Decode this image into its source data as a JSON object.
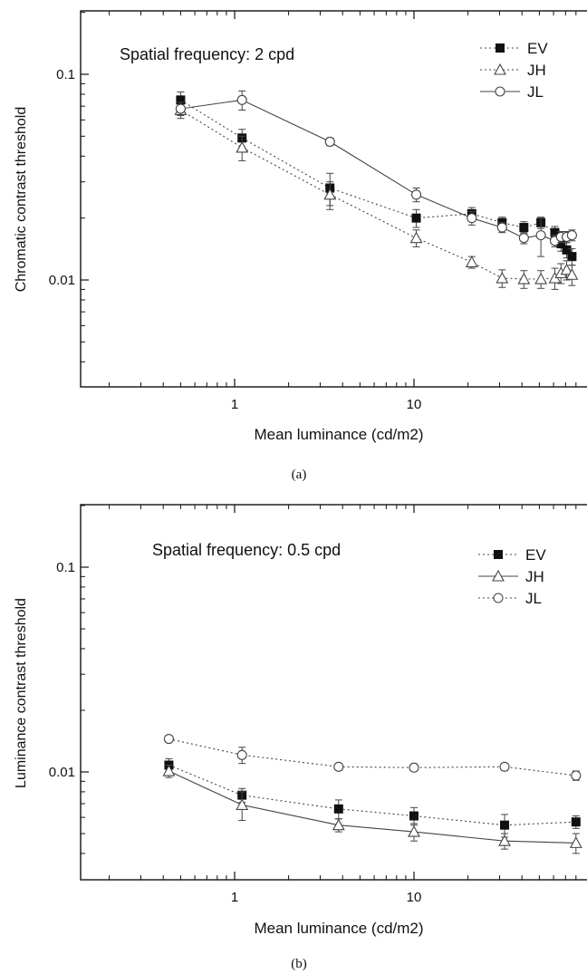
{
  "chart_data": [
    {
      "type": "line",
      "panel_label": "(a)",
      "annotation": "Spatial frequency:  2 cpd",
      "xlabel": "Mean luminance (cd/m2)",
      "ylabel": "Chromatic contrast threshold",
      "x_scale": "log",
      "y_scale": "log",
      "xlim": [
        0.2,
        80
      ],
      "ylim": [
        0.003,
        0.2
      ],
      "x_tick_labels": [
        "1",
        "10"
      ],
      "y_tick_labels": [
        "0.1",
        "0.01"
      ],
      "grid": false,
      "legend_position": "top-right",
      "series": [
        {
          "name": "EV",
          "marker": "filled-square",
          "line_style": "dotted",
          "x": [
            0.5,
            1.1,
            3.4,
            10.3,
            21,
            31,
            41,
            51,
            61,
            66,
            71,
            76
          ],
          "y": [
            0.075,
            0.049,
            0.028,
            0.02,
            0.021,
            0.019,
            0.018,
            0.019,
            0.017,
            0.015,
            0.014,
            0.013
          ],
          "err": [
            0.007,
            0.005,
            0.005,
            0.002,
            0.0015,
            0.0012,
            0.0012,
            0.0012,
            0.0012,
            0.0012,
            0.0012,
            0.0012
          ]
        },
        {
          "name": "JH",
          "marker": "open-triangle",
          "line_style": "dotted",
          "x": [
            0.5,
            1.1,
            3.4,
            10.3,
            21,
            31,
            41,
            51,
            61,
            66,
            71,
            76
          ],
          "y": [
            0.067,
            0.044,
            0.026,
            0.016,
            0.0122,
            0.0102,
            0.0101,
            0.0101,
            0.0102,
            0.0108,
            0.0112,
            0.0106
          ],
          "err": [
            0.006,
            0.006,
            0.004,
            0.0015,
            0.0008,
            0.001,
            0.001,
            0.001,
            0.0012,
            0.0012,
            0.0012,
            0.0012
          ]
        },
        {
          "name": "JL",
          "marker": "open-circle",
          "line_style": "solid",
          "x": [
            0.5,
            1.1,
            3.4,
            10.3,
            21,
            31,
            41,
            51,
            61,
            66,
            71,
            76
          ],
          "y": [
            0.068,
            0.075,
            0.047,
            0.026,
            0.02,
            0.018,
            0.016,
            0.0165,
            0.0155,
            0.0162,
            0.0162,
            0.0165
          ],
          "err": [
            0.005,
            0.008,
            0.002,
            0.002,
            0.0015,
            0.001,
            0.001,
            0.0035,
            0.001,
            0.001,
            0.001,
            0.001
          ]
        }
      ]
    },
    {
      "type": "line",
      "panel_label": "(b)",
      "annotation": "Spatial frequency:  0.5 cpd",
      "xlabel": "Mean luminance (cd/m2)",
      "ylabel": "Luminance contrast threshold",
      "x_scale": "log",
      "y_scale": "log",
      "xlim": [
        0.2,
        80
      ],
      "ylim": [
        0.003,
        0.2
      ],
      "x_tick_labels": [
        "1",
        "10"
      ],
      "y_tick_labels": [
        "0.1",
        "0.01"
      ],
      "grid": false,
      "legend_position": "top-right",
      "series": [
        {
          "name": "EV",
          "marker": "filled-square",
          "line_style": "dotted",
          "x": [
            0.43,
            1.1,
            3.8,
            10,
            32,
            80
          ],
          "y": [
            0.0108,
            0.0077,
            0.0066,
            0.0061,
            0.0055,
            0.0057
          ],
          "err": [
            0.0008,
            0.0006,
            0.0007,
            0.0006,
            0.0007,
            0.0004
          ]
        },
        {
          "name": "JH",
          "marker": "open-triangle",
          "line_style": "solid",
          "x": [
            0.43,
            1.1,
            3.8,
            10,
            32,
            80
          ],
          "y": [
            0.0101,
            0.0069,
            0.0055,
            0.0051,
            0.0046,
            0.0045
          ],
          "err": [
            0.0007,
            0.0011,
            0.0004,
            0.0005,
            0.0004,
            0.0005
          ]
        },
        {
          "name": "JL",
          "marker": "open-circle",
          "line_style": "dotted",
          "x": [
            0.43,
            1.1,
            3.8,
            10,
            32,
            80
          ],
          "y": [
            0.0145,
            0.0121,
            0.0106,
            0.0105,
            0.0106,
            0.0096
          ],
          "err": [
            0.0005,
            0.0011,
            0.0004,
            0.0004,
            0.0004,
            0.0005
          ]
        }
      ]
    }
  ]
}
